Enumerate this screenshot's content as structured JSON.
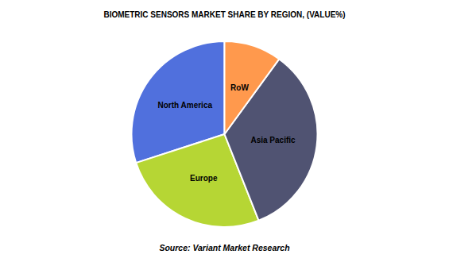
{
  "chart_data": {
    "type": "pie",
    "title": "BIOMETRIC SENSORS MARKET SHARE BY REGION, (VALUE%)",
    "categories": [
      "North America",
      "Europe",
      "Asia Pacific",
      "RoW"
    ],
    "values": [
      30,
      26,
      34,
      10
    ],
    "annotations": [
      "Source: Variant Market Research"
    ]
  }
}
